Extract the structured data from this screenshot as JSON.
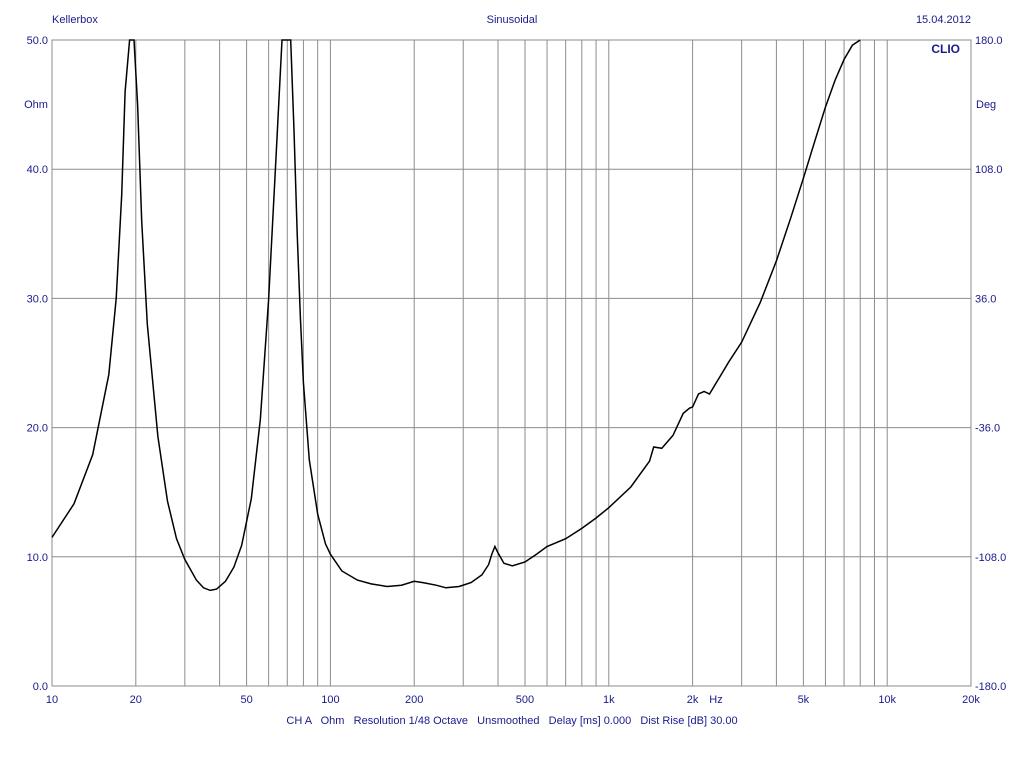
{
  "header": {
    "left": "Kellerbox",
    "center": "Sinusoidal",
    "right": "15.04.2012",
    "brand": "CLIO"
  },
  "footer": {
    "status": "CH A   Ohm   Resolution 1/48 Octave   Unsmoothed   Delay [ms] 0.000   Dist Rise [dB] 30.00"
  },
  "colors": {
    "curve": "#000000",
    "grid": "#8c8c8c",
    "text": "#1a1a8c"
  },
  "chart_data": {
    "type": "line",
    "title": "Sinusoidal",
    "xscale": "log",
    "xlim": [
      10,
      20000
    ],
    "ylim": [
      0,
      50
    ],
    "y2lim": [
      -180,
      180
    ],
    "ylabel": "Ohm",
    "y2label": "Deg",
    "xunit": "Hz",
    "grid": true,
    "x_ticks": [
      {
        "value": 10,
        "label": "10"
      },
      {
        "value": 20,
        "label": "20"
      },
      {
        "value": 50,
        "label": "50"
      },
      {
        "value": 100,
        "label": "100"
      },
      {
        "value": 200,
        "label": "200"
      },
      {
        "value": 500,
        "label": "500"
      },
      {
        "value": 1000,
        "label": "1k"
      },
      {
        "value": 2000,
        "label": "2k"
      },
      {
        "value": 5000,
        "label": "5k"
      },
      {
        "value": 10000,
        "label": "10k"
      },
      {
        "value": 20000,
        "label": "20k"
      }
    ],
    "y_ticks": [
      {
        "value": 0,
        "label": "0.0"
      },
      {
        "value": 10,
        "label": "10.0"
      },
      {
        "value": 20,
        "label": "20.0"
      },
      {
        "value": 30,
        "label": "30.0"
      },
      {
        "value": 40,
        "label": "40.0"
      },
      {
        "value": 50,
        "label": "50.0"
      }
    ],
    "y2_ticks": [
      {
        "value": -180,
        "label": "-180.0"
      },
      {
        "value": -108,
        "label": "-108.0"
      },
      {
        "value": -36,
        "label": "-36.0"
      },
      {
        "value": 36,
        "label": "36.0"
      },
      {
        "value": 108,
        "label": "108.0"
      },
      {
        "value": 180,
        "label": "180.0"
      }
    ],
    "series": [
      {
        "x": [
          10,
          12,
          14,
          16,
          17,
          17.8,
          18.3,
          19,
          19.7,
          20.3,
          21,
          22,
          24,
          26,
          28,
          30,
          33,
          35,
          37,
          39,
          42,
          45,
          48,
          52,
          56,
          60,
          64,
          67,
          69,
          70,
          71,
          72,
          74,
          76,
          78,
          80,
          84,
          90,
          96,
          100,
          110,
          125,
          140,
          160,
          180,
          200,
          215,
          240,
          260,
          290,
          320,
          350,
          370,
          380,
          390,
          400,
          420,
          450,
          500,
          550,
          600,
          700,
          800,
          900,
          1000,
          1200,
          1400,
          1450,
          1550,
          1700,
          1850,
          1950,
          2000,
          2100,
          2200,
          2300,
          2500,
          2700,
          3000,
          3500,
          4000,
          4500,
          5000,
          5500,
          6000,
          6500,
          7000,
          7500,
          8000
        ],
        "y": [
          11.5,
          14.1,
          17.9,
          24.1,
          30,
          38,
          46,
          50,
          50,
          45,
          36,
          28,
          19.3,
          14.3,
          11.4,
          9.8,
          8.2,
          7.6,
          7.4,
          7.5,
          8.1,
          9.2,
          10.9,
          14.5,
          20.6,
          29.9,
          41.5,
          50,
          50,
          50,
          50,
          50,
          43,
          35,
          28.5,
          23.5,
          17.5,
          13.3,
          11,
          10.2,
          8.9,
          8.2,
          7.9,
          7.7,
          7.8,
          8.1,
          8.0,
          7.8,
          7.6,
          7.7,
          8.0,
          8.6,
          9.4,
          10.2,
          10.8,
          10.3,
          9.5,
          9.3,
          9.6,
          10.2,
          10.8,
          11.4,
          12.2,
          13.0,
          13.8,
          15.4,
          17.4,
          18.5,
          18.4,
          19.4,
          21.1,
          21.5,
          21.6,
          22.6,
          22.8,
          22.6,
          23.9,
          25.1,
          26.6,
          29.7,
          32.9,
          36.2,
          39.3,
          42.2,
          44.8,
          46.9,
          48.5,
          49.6,
          50.0
        ]
      }
    ]
  }
}
